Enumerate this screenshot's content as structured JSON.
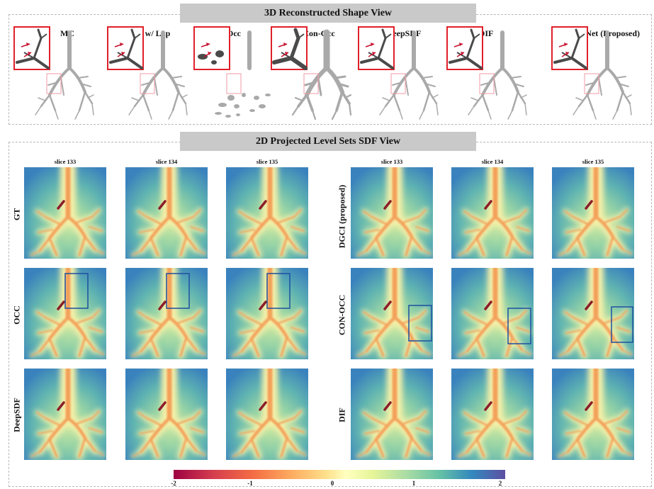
{
  "top_banner": "3D Reconstructed Shape View",
  "methods": [
    "MC",
    "MC w/ Lap",
    "Occ",
    "Con-Occ",
    "DeepSDF",
    "DIF",
    "DGCINet (Proposed)"
  ],
  "bottom_banner": "2D Projected Level Sets SDF View",
  "slice_titles": [
    "slice 133",
    "slice 134",
    "slice 135",
    "slice 133",
    "slice 134",
    "slice 135"
  ],
  "row_labels_left": [
    "GT",
    "OCC",
    "DeepSDF"
  ],
  "row_labels_right": [
    "DGCI (proposed)",
    "CON-OCC",
    "DIF"
  ],
  "colorbar": {
    "ticks": [
      "-2",
      "-1",
      "0",
      "1",
      "2"
    ],
    "colors": [
      "#9e0142",
      "#d53e4f",
      "#f46d43",
      "#fdae61",
      "#fee08b",
      "#ffffbf",
      "#e6f598",
      "#abdda4",
      "#66c2a5",
      "#3288bd",
      "#5e4fa2"
    ]
  },
  "annotation_colors": {
    "zoom_box": "#e0202a",
    "arrow": "#c8102e",
    "highlight_box": "#1f4fa0"
  }
}
